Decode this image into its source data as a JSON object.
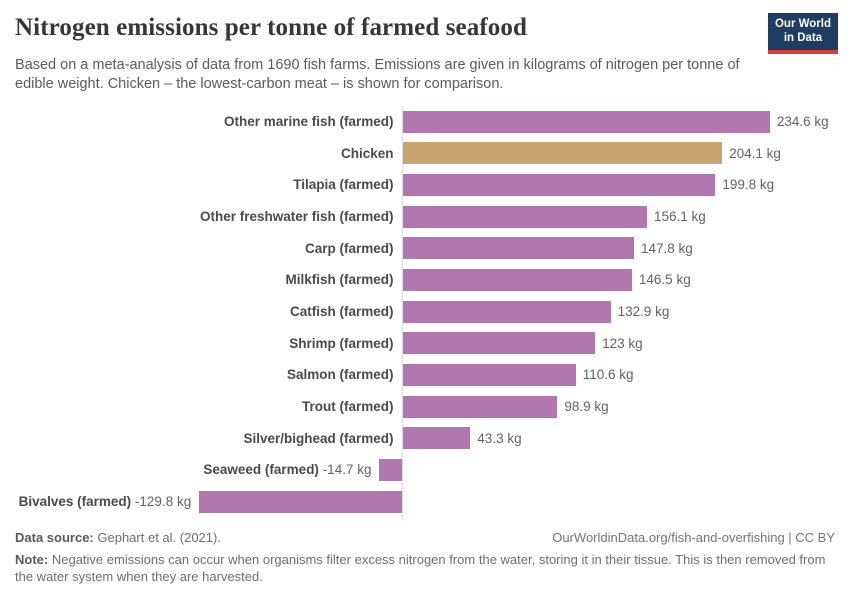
{
  "header": {
    "title": "Nitrogen emissions per tonne of farmed seafood",
    "subtitle": "Based on a meta-analysis of data from 1690 fish farms. Emissions are given in kilograms of nitrogen per tonne of edible weight. Chicken – the lowest-carbon meat – is shown for comparison.",
    "logo": {
      "line1": "Our World",
      "line2": "in Data"
    }
  },
  "chart_data": {
    "type": "bar",
    "orientation": "horizontal",
    "title": "Nitrogen emissions per tonne of farmed seafood",
    "unit": "kg",
    "xlim": [
      -129.8,
      234.6
    ],
    "grid": false,
    "zero_axis_line": true,
    "categories": [
      "Other marine fish (farmed)",
      "Chicken",
      "Tilapia (farmed)",
      "Other freshwater fish (farmed)",
      "Carp (farmed)",
      "Milkfish (farmed)",
      "Catfish (farmed)",
      "Shrimp (farmed)",
      "Salmon (farmed)",
      "Trout (farmed)",
      "Silver/bighead (farmed)",
      "Seaweed (farmed)",
      "Bivalves (farmed)"
    ],
    "values": [
      234.6,
      204.1,
      199.8,
      156.1,
      147.8,
      146.5,
      132.9,
      123,
      110.6,
      98.9,
      43.3,
      -14.7,
      -129.8
    ],
    "value_labels": [
      "234.6 kg",
      "204.1 kg",
      "199.8 kg",
      "156.1 kg",
      "147.8 kg",
      "146.5 kg",
      "132.9 kg",
      "123 kg",
      "110.6 kg",
      "98.9 kg",
      "43.3 kg",
      "-14.7 kg",
      "-129.8 kg"
    ],
    "highlight_index": 1,
    "colors": {
      "bar": "#b377af",
      "highlight": "#c9a46f",
      "axis": "#dedede"
    }
  },
  "footer": {
    "datasource_label": "Data source:",
    "datasource_value": "Gephart et al. (2021).",
    "link": "OurWorldinData.org/fish-and-overfishing | CC BY",
    "note_label": "Note:",
    "note_text": "Negative emissions can occur when organisms filter excess nitrogen from the water, storing it in their tissue. This is then removed from the water system when they are harvested."
  }
}
